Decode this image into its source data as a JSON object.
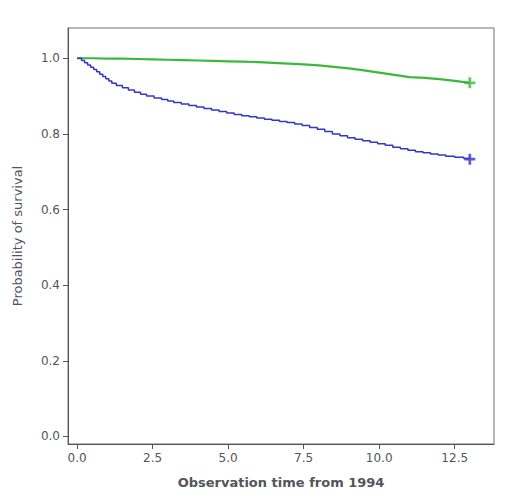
{
  "chart_data": {
    "type": "line",
    "xlabel": "Observation time from 1994",
    "ylabel": "Probability of survival",
    "xlim": [
      -0.3,
      13.8
    ],
    "ylim": [
      -0.02,
      1.08
    ],
    "xticks": [
      {
        "value": 0.0,
        "label": "0.0"
      },
      2.5,
      {
        "value": 5.0,
        "label": "5.0"
      },
      7.5,
      {
        "value": 10.0,
        "label": "10.0"
      },
      12.5
    ],
    "yticks": [
      {
        "value": 0.0,
        "label": "0.0"
      },
      0.2,
      0.4,
      0.6,
      0.8,
      {
        "value": 1.0,
        "label": "1.0"
      }
    ],
    "grid": false,
    "series": [
      {
        "type": "line",
        "color": "#3cb83c",
        "x": [
          0.0,
          0.5,
          1.0,
          1.5,
          2.0,
          2.5,
          3.0,
          3.5,
          4.0,
          4.5,
          5.0,
          5.5,
          6.0,
          6.5,
          7.0,
          7.5,
          8.0,
          8.5,
          9.0,
          9.5,
          10.0,
          10.5,
          11.0,
          11.5,
          12.0,
          12.5,
          13.0
        ],
        "values": [
          1.0,
          1.0,
          0.999,
          0.999,
          0.998,
          0.997,
          0.996,
          0.995,
          0.994,
          0.993,
          0.992,
          0.991,
          0.99,
          0.988,
          0.986,
          0.984,
          0.981,
          0.977,
          0.973,
          0.968,
          0.962,
          0.956,
          0.95,
          0.948,
          0.945,
          0.94,
          0.935
        ]
      },
      {
        "type": "step",
        "color": "#3535c8",
        "x": [
          0.0,
          0.15,
          0.25,
          0.35,
          0.45,
          0.55,
          0.65,
          0.75,
          0.85,
          0.95,
          1.05,
          1.15,
          1.3,
          1.5,
          1.7,
          1.9,
          2.1,
          2.3,
          2.55,
          2.8,
          3.0,
          3.2,
          3.45,
          3.7,
          3.95,
          4.2,
          4.45,
          4.7,
          4.95,
          5.2,
          5.45,
          5.7,
          5.95,
          6.2,
          6.45,
          6.7,
          6.95,
          7.2,
          7.45,
          7.7,
          7.95,
          8.2,
          8.45,
          8.7,
          8.95,
          9.2,
          9.45,
          9.7,
          9.95,
          10.2,
          10.45,
          10.7,
          10.95,
          11.2,
          11.45,
          11.7,
          11.95,
          12.2,
          12.5,
          12.8,
          13.0
        ],
        "values": [
          1.0,
          0.994,
          0.988,
          0.982,
          0.976,
          0.97,
          0.964,
          0.958,
          0.952,
          0.946,
          0.94,
          0.934,
          0.928,
          0.922,
          0.916,
          0.91,
          0.905,
          0.9,
          0.895,
          0.891,
          0.887,
          0.883,
          0.879,
          0.875,
          0.871,
          0.867,
          0.863,
          0.859,
          0.855,
          0.851,
          0.848,
          0.845,
          0.842,
          0.839,
          0.836,
          0.833,
          0.83,
          0.826,
          0.822,
          0.817,
          0.812,
          0.806,
          0.8,
          0.795,
          0.79,
          0.786,
          0.782,
          0.778,
          0.774,
          0.77,
          0.765,
          0.761,
          0.757,
          0.753,
          0.75,
          0.747,
          0.744,
          0.741,
          0.738,
          0.735,
          0.733
        ]
      },
      {
        "type": "scatter",
        "marker": "plus",
        "color": "#3cb83c",
        "x": [
          13.0
        ],
        "values": [
          0.935
        ]
      },
      {
        "type": "scatter",
        "marker": "plus",
        "color": "#3535c8",
        "x": [
          13.0
        ],
        "values": [
          0.733
        ]
      }
    ]
  }
}
